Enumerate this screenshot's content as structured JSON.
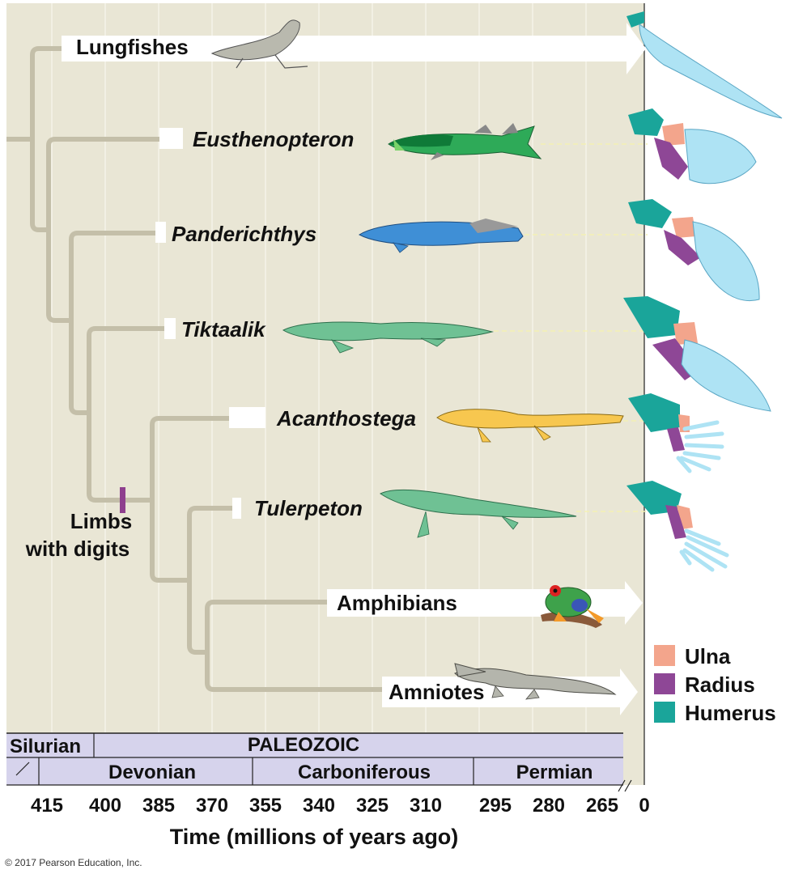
{
  "taxa": [
    {
      "name": "Lungfishes",
      "italic": false
    },
    {
      "name": "Eusthenopteron",
      "italic": true
    },
    {
      "name": "Panderichthys",
      "italic": true
    },
    {
      "name": "Tiktaalik",
      "italic": true
    },
    {
      "name": "Acanthostega",
      "italic": true
    },
    {
      "name": "Tulerpeton",
      "italic": true
    },
    {
      "name": "Amphibians",
      "italic": false
    },
    {
      "name": "Amniotes",
      "italic": false
    }
  ],
  "limb_marker": {
    "line1": "Limbs",
    "line2": "with digits",
    "color": "#8e3f8e"
  },
  "legend": [
    {
      "label": "Ulna",
      "color": "#f3a58c"
    },
    {
      "label": "Radius",
      "color": "#8e4796"
    },
    {
      "label": "Humerus",
      "color": "#1aa59a"
    }
  ],
  "timescale": {
    "era": "PALEOZOIC",
    "periods": [
      "Silurian",
      "Devonian",
      "Carboniferous",
      "Permian"
    ],
    "ticks": [
      "415",
      "400",
      "385",
      "370",
      "355",
      "340",
      "325",
      "310",
      "295",
      "280",
      "265",
      "0"
    ],
    "axis_title": "Time (millions of years ago)"
  },
  "credit": "© 2017 Pearson Education, Inc.",
  "colors": {
    "panel": "#e9e6d5",
    "branch": "#c4bfa9",
    "bone_blue": "#aee3f4",
    "timebar": "#d6d3ec"
  }
}
